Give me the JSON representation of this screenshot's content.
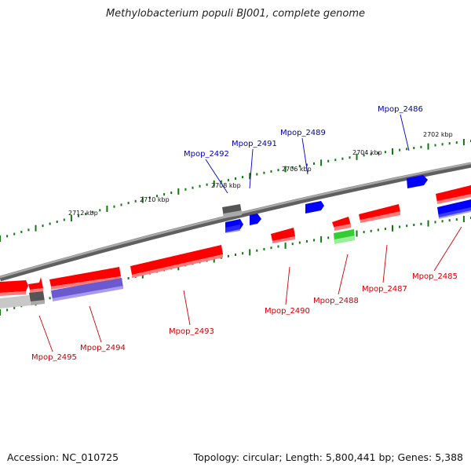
{
  "title": "Methylobacterium populi BJ001, complete genome",
  "footer": {
    "accession": "Accession: NC_010725",
    "summary": "Topology: circular; Length: 5,800,441 bp; Genes: 5,388"
  },
  "colors": {
    "forward_gene": "#ff0000",
    "reverse_gene": "#0000ff",
    "rna_gene": "#33cc33",
    "pseudo_gene": "#666666",
    "backbone": "#888888",
    "tick": "#117711",
    "label_forward": "#cc0000",
    "label_reverse": "#0000aa"
  },
  "scale_labels": [
    "2712 kbp",
    "2710 kbp",
    "2708 kbp",
    "2706 kbp",
    "2704 kbp",
    "2702 kbp"
  ],
  "gene_labels": [
    "Mpop_2492",
    "Mpop_2491",
    "Mpop_2489",
    "Mpop_2486",
    "Mpop_2495",
    "Mpop_2494",
    "Mpop_2493",
    "Mpop_2490",
    "Mpop_2488",
    "Mpop_2487",
    "Mpop_2485"
  ]
}
